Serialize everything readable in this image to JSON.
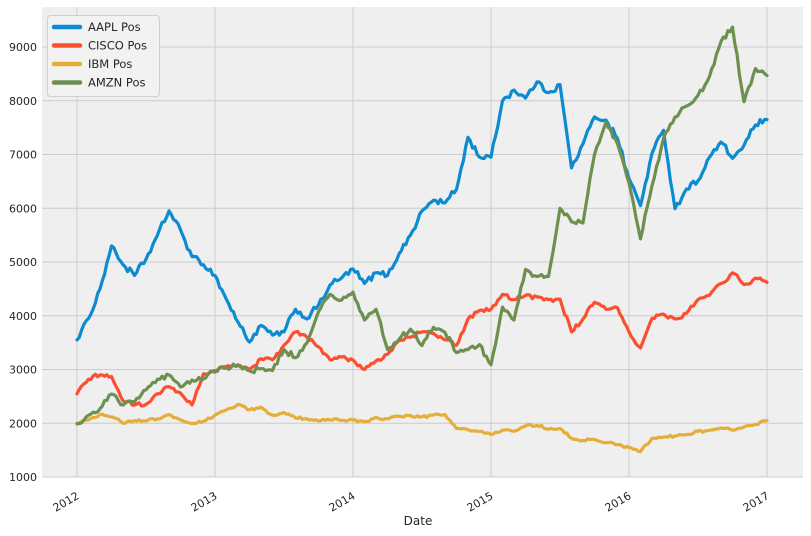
{
  "figure": {
    "background": "#ffffff",
    "plot_background": "#efefef",
    "grid_color": "#cccccc",
    "text_color": "#262626",
    "legend_background": "#f2f2f3",
    "legend_border": "#cfcfcf"
  },
  "chart_data": {
    "type": "line",
    "title": "",
    "xlabel": "Date",
    "ylabel": "",
    "grid": true,
    "legend_position": "upper-left",
    "x_unit": "decimal_year",
    "xlim": [
      2011.75,
      2017.26
    ],
    "ylim": [
      1000,
      9740
    ],
    "x_ticks": [
      2012,
      2013,
      2014,
      2015,
      2016,
      2017
    ],
    "x_tick_labels": [
      "2012",
      "2013",
      "2014",
      "2015",
      "2016",
      "2017"
    ],
    "y_ticks": [
      1000,
      2000,
      3000,
      4000,
      5000,
      6000,
      7000,
      8000,
      9000
    ],
    "y_tick_labels": [
      "1000",
      "2000",
      "3000",
      "4000",
      "5000",
      "6000",
      "7000",
      "8000",
      "9000"
    ],
    "x": [
      2012.0,
      2012.083,
      2012.167,
      2012.25,
      2012.333,
      2012.417,
      2012.5,
      2012.583,
      2012.667,
      2012.75,
      2012.833,
      2012.917,
      2013.0,
      2013.083,
      2013.167,
      2013.25,
      2013.333,
      2013.417,
      2013.5,
      2013.583,
      2013.667,
      2013.75,
      2013.833,
      2013.917,
      2014.0,
      2014.083,
      2014.167,
      2014.25,
      2014.333,
      2014.417,
      2014.5,
      2014.583,
      2014.667,
      2014.75,
      2014.833,
      2014.917,
      2015.0,
      2015.083,
      2015.167,
      2015.25,
      2015.333,
      2015.417,
      2015.5,
      2015.583,
      2015.667,
      2015.75,
      2015.833,
      2015.917,
      2016.0,
      2016.083,
      2016.167,
      2016.25,
      2016.333,
      2016.417,
      2016.5,
      2016.583,
      2016.667,
      2016.75,
      2016.833,
      2016.917,
      2017.0
    ],
    "series": [
      {
        "name": "AAPL Pos",
        "color": "#0d8bd1",
        "values": [
          3550,
          3950,
          4500,
          5300,
          4950,
          4750,
          5050,
          5500,
          5950,
          5600,
          5100,
          4950,
          4750,
          4300,
          3880,
          3510,
          3820,
          3640,
          3700,
          4120,
          3940,
          4200,
          4570,
          4700,
          4870,
          4600,
          4800,
          4750,
          5150,
          5500,
          5950,
          6150,
          6100,
          6350,
          7320,
          6950,
          6950,
          8000,
          8200,
          8050,
          8350,
          8150,
          8300,
          6750,
          7200,
          7700,
          7640,
          7300,
          6550,
          6050,
          7020,
          7450,
          5990,
          6360,
          6510,
          6950,
          7230,
          6930,
          7170,
          7550,
          7650
        ]
      },
      {
        "name": "CISCO Pos",
        "color": "#fc4f30",
        "values": [
          2550,
          2820,
          2900,
          2870,
          2420,
          2340,
          2350,
          2550,
          2680,
          2560,
          2340,
          2920,
          2950,
          3060,
          3090,
          3000,
          3200,
          3180,
          3450,
          3700,
          3600,
          3420,
          3180,
          3230,
          3180,
          3000,
          3160,
          3280,
          3540,
          3600,
          3700,
          3670,
          3550,
          3450,
          3940,
          4100,
          4120,
          4400,
          4300,
          4380,
          4350,
          4300,
          4310,
          3700,
          3940,
          4250,
          4120,
          4150,
          3700,
          3400,
          3950,
          4030,
          3940,
          4050,
          4300,
          4380,
          4600,
          4800,
          4580,
          4700,
          4620
        ]
      },
      {
        "name": "IBM Pos",
        "color": "#e5ae38",
        "values": [
          2000,
          2060,
          2160,
          2120,
          2000,
          2050,
          2040,
          2080,
          2160,
          2060,
          1990,
          2040,
          2150,
          2250,
          2350,
          2250,
          2300,
          2150,
          2200,
          2100,
          2080,
          2040,
          2060,
          2050,
          2060,
          2030,
          2110,
          2080,
          2130,
          2140,
          2120,
          2150,
          2160,
          1900,
          1880,
          1850,
          1790,
          1870,
          1850,
          1950,
          1960,
          1890,
          1900,
          1720,
          1680,
          1700,
          1640,
          1600,
          1550,
          1470,
          1720,
          1740,
          1760,
          1790,
          1850,
          1870,
          1910,
          1870,
          1930,
          1980,
          2050
        ]
      },
      {
        "name": "AMZN Pos",
        "color": "#6d904f",
        "values": [
          1990,
          2150,
          2270,
          2545,
          2340,
          2395,
          2620,
          2820,
          2900,
          2675,
          2805,
          2825,
          2980,
          3030,
          3070,
          2975,
          3015,
          2980,
          3370,
          3220,
          3495,
          4075,
          4400,
          4290,
          4440,
          3920,
          4120,
          3370,
          3560,
          3750,
          3445,
          3785,
          3690,
          3315,
          3370,
          3465,
          3090,
          4160,
          3920,
          4860,
          4730,
          4730,
          6000,
          5750,
          5725,
          7000,
          7600,
          7200,
          6470,
          5430,
          6420,
          7300,
          7700,
          7900,
          8100,
          8450,
          9100,
          9370,
          7980,
          8600,
          8470
        ]
      }
    ]
  }
}
